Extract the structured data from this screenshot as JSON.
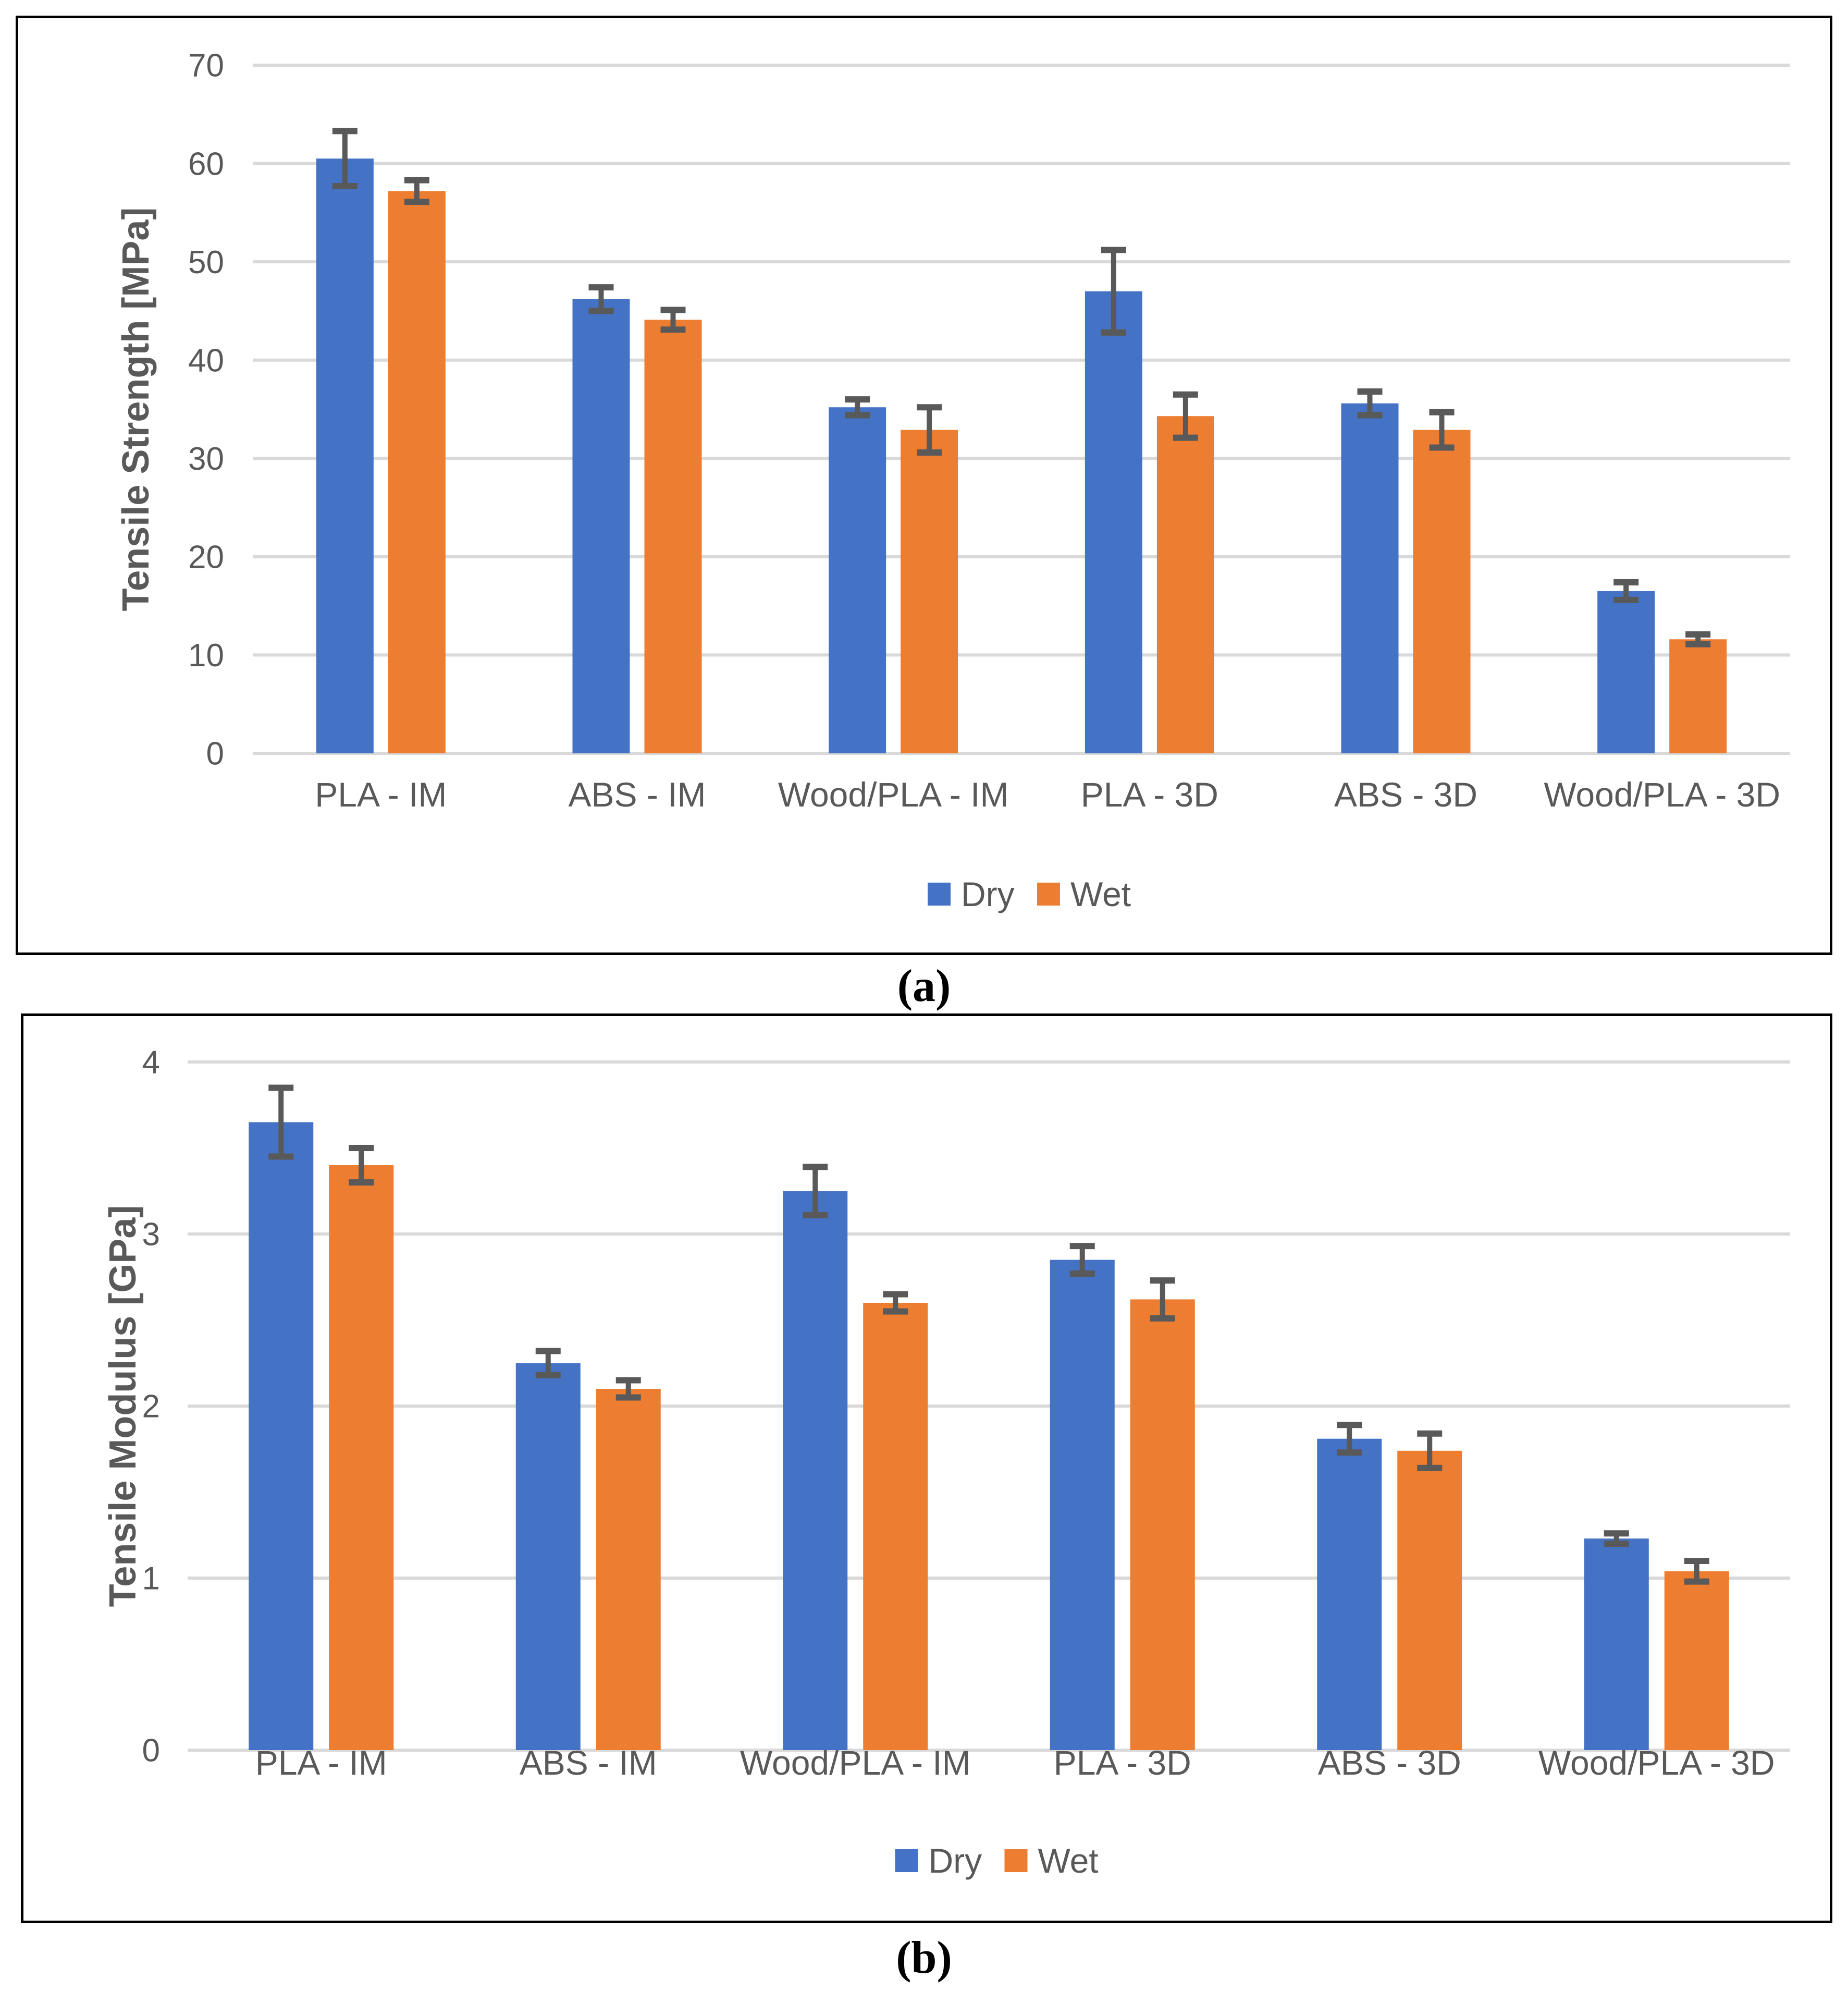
{
  "styles": {
    "background": "#ffffff",
    "grid_color": "#D9D9D9",
    "error_bar_color": "#595959",
    "text_color": "#595959",
    "caption_color": "#000000",
    "panel_border_color": "#000000",
    "dry_color": "#4472C4",
    "wet_color": "#ED7D31"
  },
  "captions": {
    "a": "(a)",
    "b": "(b)"
  },
  "chart_data": [
    {
      "panel": "a",
      "type": "bar",
      "title": "",
      "xlabel": "",
      "ylabel": "Tensile Strength [MPa]",
      "ylim": [
        0,
        70
      ],
      "yticks": [
        0,
        10,
        20,
        30,
        40,
        50,
        60,
        70
      ],
      "grid": true,
      "legend_position": "bottom-center",
      "caption": "(a)",
      "categories": [
        "PLA - IM",
        "ABS - IM",
        "Wood/PLA - IM",
        "PLA - 3D",
        "ABS - 3D",
        "Wood/PLA - 3D"
      ],
      "series": [
        {
          "name": "Dry",
          "color": "#4472C4",
          "values": [
            60.5,
            46.2,
            35.2,
            47.0,
            35.6,
            16.5
          ],
          "errors": [
            2.8,
            1.2,
            0.8,
            4.2,
            1.2,
            0.9
          ]
        },
        {
          "name": "Wet",
          "color": "#ED7D31",
          "values": [
            57.2,
            44.1,
            32.9,
            34.3,
            32.9,
            11.6
          ],
          "errors": [
            1.1,
            1.0,
            2.3,
            2.2,
            1.8,
            0.5
          ]
        }
      ]
    },
    {
      "panel": "b",
      "type": "bar",
      "title": "",
      "xlabel": "",
      "ylabel": "Tensile Modulus [GPa]",
      "ylim": [
        0,
        4
      ],
      "yticks": [
        0,
        1,
        2,
        3,
        4
      ],
      "grid": true,
      "legend_position": "bottom-center",
      "caption": "(b)",
      "categories": [
        "PLA - IM",
        "ABS - IM",
        "Wood/PLA - IM",
        "PLA - 3D",
        "ABS - 3D",
        "Wood/PLA - 3D"
      ],
      "series": [
        {
          "name": "Dry",
          "color": "#4472C4",
          "values": [
            3.65,
            2.25,
            3.25,
            2.85,
            1.81,
            1.23
          ],
          "errors": [
            0.2,
            0.07,
            0.14,
            0.08,
            0.08,
            0.03
          ]
        },
        {
          "name": "Wet",
          "color": "#ED7D31",
          "values": [
            3.4,
            2.1,
            2.6,
            2.62,
            1.74,
            1.04
          ],
          "errors": [
            0.1,
            0.05,
            0.05,
            0.11,
            0.1,
            0.06
          ]
        }
      ]
    }
  ]
}
